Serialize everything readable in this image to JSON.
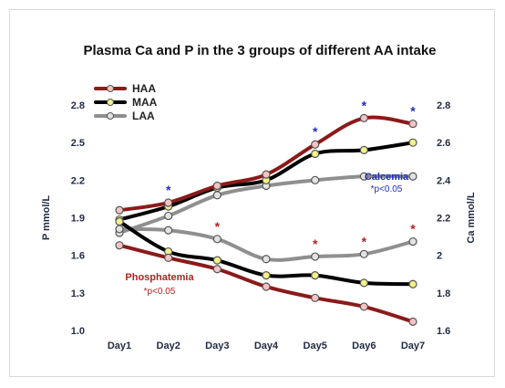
{
  "chart_data": {
    "type": "line",
    "title": "Plasma Ca and P in the 3 groups of different AA intake",
    "categories": [
      "Day1",
      "Day2",
      "Day3",
      "Day4",
      "Day5",
      "Day6",
      "Day7"
    ],
    "y_left": {
      "label": "P mmol/L",
      "range": [
        1.0,
        2.8
      ],
      "ticks": [
        "1.0",
        "1.3",
        "1.6",
        "1.9",
        "2.2",
        "2.5",
        "2.8"
      ]
    },
    "y_right": {
      "label": "Ca mmol/L",
      "range": [
        1.6,
        2.8
      ],
      "ticks": [
        "1.6",
        "1.8",
        "2",
        "2.2",
        "2.4",
        "2.6",
        "2.8"
      ]
    },
    "legend": {
      "position": "top-left",
      "entries": [
        "HAA",
        "MAA",
        "LAA"
      ]
    },
    "groups": [
      {
        "name": "Calcemia",
        "note": "*p<0.05",
        "axis": "right",
        "color": "#1f2fbf",
        "series": [
          {
            "name": "HAA",
            "color": "#8b1a1a",
            "values": [
              2.24,
              2.28,
              2.37,
              2.43,
              2.59,
              2.73,
              2.7
            ]
          },
          {
            "name": "MAA",
            "color": "#000000",
            "values": [
              2.19,
              2.26,
              2.36,
              2.4,
              2.54,
              2.56,
              2.6
            ]
          },
          {
            "name": "LAA",
            "color": "#8f8f8f",
            "values": [
              2.12,
              2.21,
              2.32,
              2.37,
              2.4,
              2.42,
              2.42
            ]
          }
        ],
        "significant_days": [
          "Day2",
          "Day5",
          "Day6",
          "Day7"
        ]
      },
      {
        "name": "Phosphatemia",
        "note": "*p<0.05",
        "axis": "left",
        "color": "#b22222",
        "series": [
          {
            "name": "HAA",
            "color": "#8b1a1a",
            "values": [
              1.68,
              1.58,
              1.49,
              1.35,
              1.26,
              1.19,
              1.07
            ]
          },
          {
            "name": "MAA",
            "color": "#000000",
            "values": [
              1.87,
              1.63,
              1.56,
              1.44,
              1.44,
              1.38,
              1.37
            ]
          },
          {
            "name": "LAA",
            "color": "#8f8f8f",
            "values": [
              1.81,
              1.8,
              1.73,
              1.57,
              1.59,
              1.61,
              1.71
            ]
          }
        ],
        "significant_days": [
          "Day3",
          "Day5",
          "Day6",
          "Day7"
        ]
      }
    ],
    "grid": false
  }
}
